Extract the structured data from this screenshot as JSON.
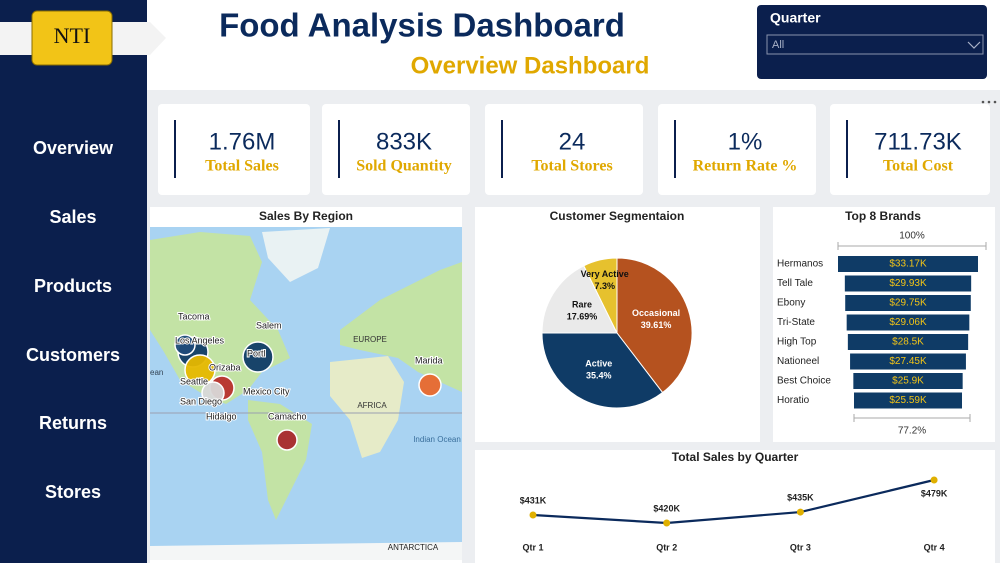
{
  "header": {
    "logo": "NTI",
    "title": "Food Analysis Dashboard",
    "subtitle": "Overview Dashboard"
  },
  "filter": {
    "label": "Quarter",
    "value": "All"
  },
  "nav": [
    "Overview",
    "Sales",
    "Products",
    "Customers",
    "Returns",
    "Stores"
  ],
  "kpis": [
    {
      "value": "1.76M",
      "label": "Total Sales"
    },
    {
      "value": "833K",
      "label": "Sold Quantity"
    },
    {
      "value": "24",
      "label": "Total Stores"
    },
    {
      "value": "1%",
      "label": "Return Rate %"
    },
    {
      "value": "711.73K",
      "label": "Total Cost"
    }
  ],
  "chart_data": [
    {
      "type": "map",
      "title": "Sales By Region",
      "locations": [
        "Tacoma",
        "Salem",
        "Los Angeles",
        "Portl",
        "Orizaba",
        "Seattle",
        "San Diego",
        "Mexico City",
        "Hidalgo",
        "Camacho",
        "Marida"
      ],
      "map_labels": [
        "ean",
        "EUROPE",
        "AFRICA",
        "Indian Ocean",
        "ANTARCTICA"
      ]
    },
    {
      "type": "pie",
      "title": "Customer Segmentaion",
      "categories": [
        "Occasional",
        "Active",
        "Rare",
        "Very Active"
      ],
      "values": [
        39.61,
        35.4,
        17.69,
        7.3
      ],
      "value_labels": [
        "39.61%",
        "35.4%",
        "17.69%",
        "7.3%"
      ],
      "colors": [
        "#b5521f",
        "#0f3b66",
        "#eaeaea",
        "#e6c12e"
      ]
    },
    {
      "type": "funnel",
      "title": "Top 8 Brands",
      "categories": [
        "Hermanos",
        "Tell Tale",
        "Ebony",
        "Tri-State",
        "High Top",
        "Nationeel",
        "Best Choice",
        "Horatio"
      ],
      "values": [
        33170,
        29930,
        29750,
        29060,
        28500,
        27450,
        25900,
        25590
      ],
      "value_labels": [
        "$33.17K",
        "$29.93K",
        "$29.75K",
        "$29.06K",
        "$28.5K",
        "$27.45K",
        "$25.9K",
        "$25.59K"
      ],
      "top_label": "100%",
      "bottom_label": "77.2%",
      "color": "#0f3b66"
    },
    {
      "type": "line",
      "title": "Total Sales by Quarter",
      "categories": [
        "Qtr 1",
        "Qtr 2",
        "Qtr 3",
        "Qtr 4"
      ],
      "values": [
        431000,
        420000,
        435000,
        479000
      ],
      "value_labels": [
        "$431K",
        "$420K",
        "$435K",
        "$479K"
      ],
      "color": "#0b2a5c",
      "marker_color": "#e0b000"
    }
  ]
}
